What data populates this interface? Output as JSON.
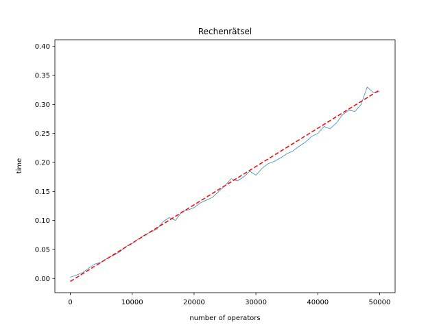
{
  "chart_data": {
    "type": "line",
    "title": "Rechenrätsel",
    "xlabel": "number of operators",
    "ylabel": "time",
    "xlim": [
      -2500,
      52500
    ],
    "ylim": [
      -0.0245,
      0.4115
    ],
    "xticks": [
      0,
      10000,
      20000,
      30000,
      40000,
      50000
    ],
    "xtick_labels": [
      "0",
      "10000",
      "20000",
      "30000",
      "40000",
      "50000"
    ],
    "yticks": [
      0.0,
      0.05,
      0.1,
      0.15,
      0.2,
      0.25,
      0.3,
      0.35,
      0.4
    ],
    "ytick_labels": [
      "0.00",
      "0.05",
      "0.10",
      "0.15",
      "0.20",
      "0.25",
      "0.30",
      "0.35",
      "0.40"
    ],
    "grid": false,
    "series": [
      {
        "kind": "measured",
        "color": "#1f77b4",
        "x": [
          0,
          1000,
          2000,
          3000,
          4000,
          5000,
          6000,
          7000,
          8000,
          9000,
          10000,
          11000,
          12000,
          13000,
          14000,
          15000,
          16000,
          17000,
          18000,
          19000,
          20000,
          21000,
          22000,
          23000,
          24000,
          25000,
          26000,
          27000,
          28000,
          29000,
          30000,
          31000,
          32000,
          33000,
          34000,
          35000,
          36000,
          37000,
          38000,
          39000,
          40000,
          41000,
          42000,
          43000,
          44000,
          45000,
          46000,
          47000,
          48000,
          49000,
          50000
        ],
        "values": [
          0.002,
          0.006,
          0.01,
          0.018,
          0.025,
          0.028,
          0.035,
          0.04,
          0.046,
          0.055,
          0.06,
          0.068,
          0.075,
          0.08,
          0.085,
          0.098,
          0.105,
          0.1,
          0.115,
          0.118,
          0.122,
          0.13,
          0.135,
          0.14,
          0.15,
          0.16,
          0.172,
          0.168,
          0.175,
          0.185,
          0.178,
          0.19,
          0.198,
          0.202,
          0.208,
          0.215,
          0.22,
          0.228,
          0.235,
          0.245,
          0.25,
          0.262,
          0.258,
          0.268,
          0.282,
          0.29,
          0.288,
          0.3,
          0.33,
          0.32,
          0.322
        ]
      },
      {
        "kind": "fit",
        "color": "#ff0000",
        "dashed": true,
        "x": [
          0,
          50000
        ],
        "values": [
          -0.005,
          0.325
        ]
      }
    ]
  }
}
